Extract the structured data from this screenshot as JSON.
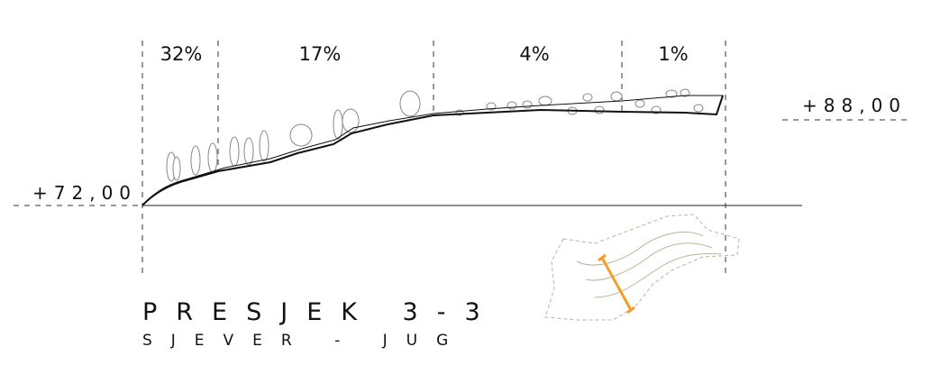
{
  "slopes": [
    "32%",
    "17%",
    "4%",
    "1%"
  ],
  "levels": {
    "start": "+72,00",
    "end": "+88,00"
  },
  "title": "PRESJEK 3-3",
  "subtitle": "SJEVER - JUG"
}
